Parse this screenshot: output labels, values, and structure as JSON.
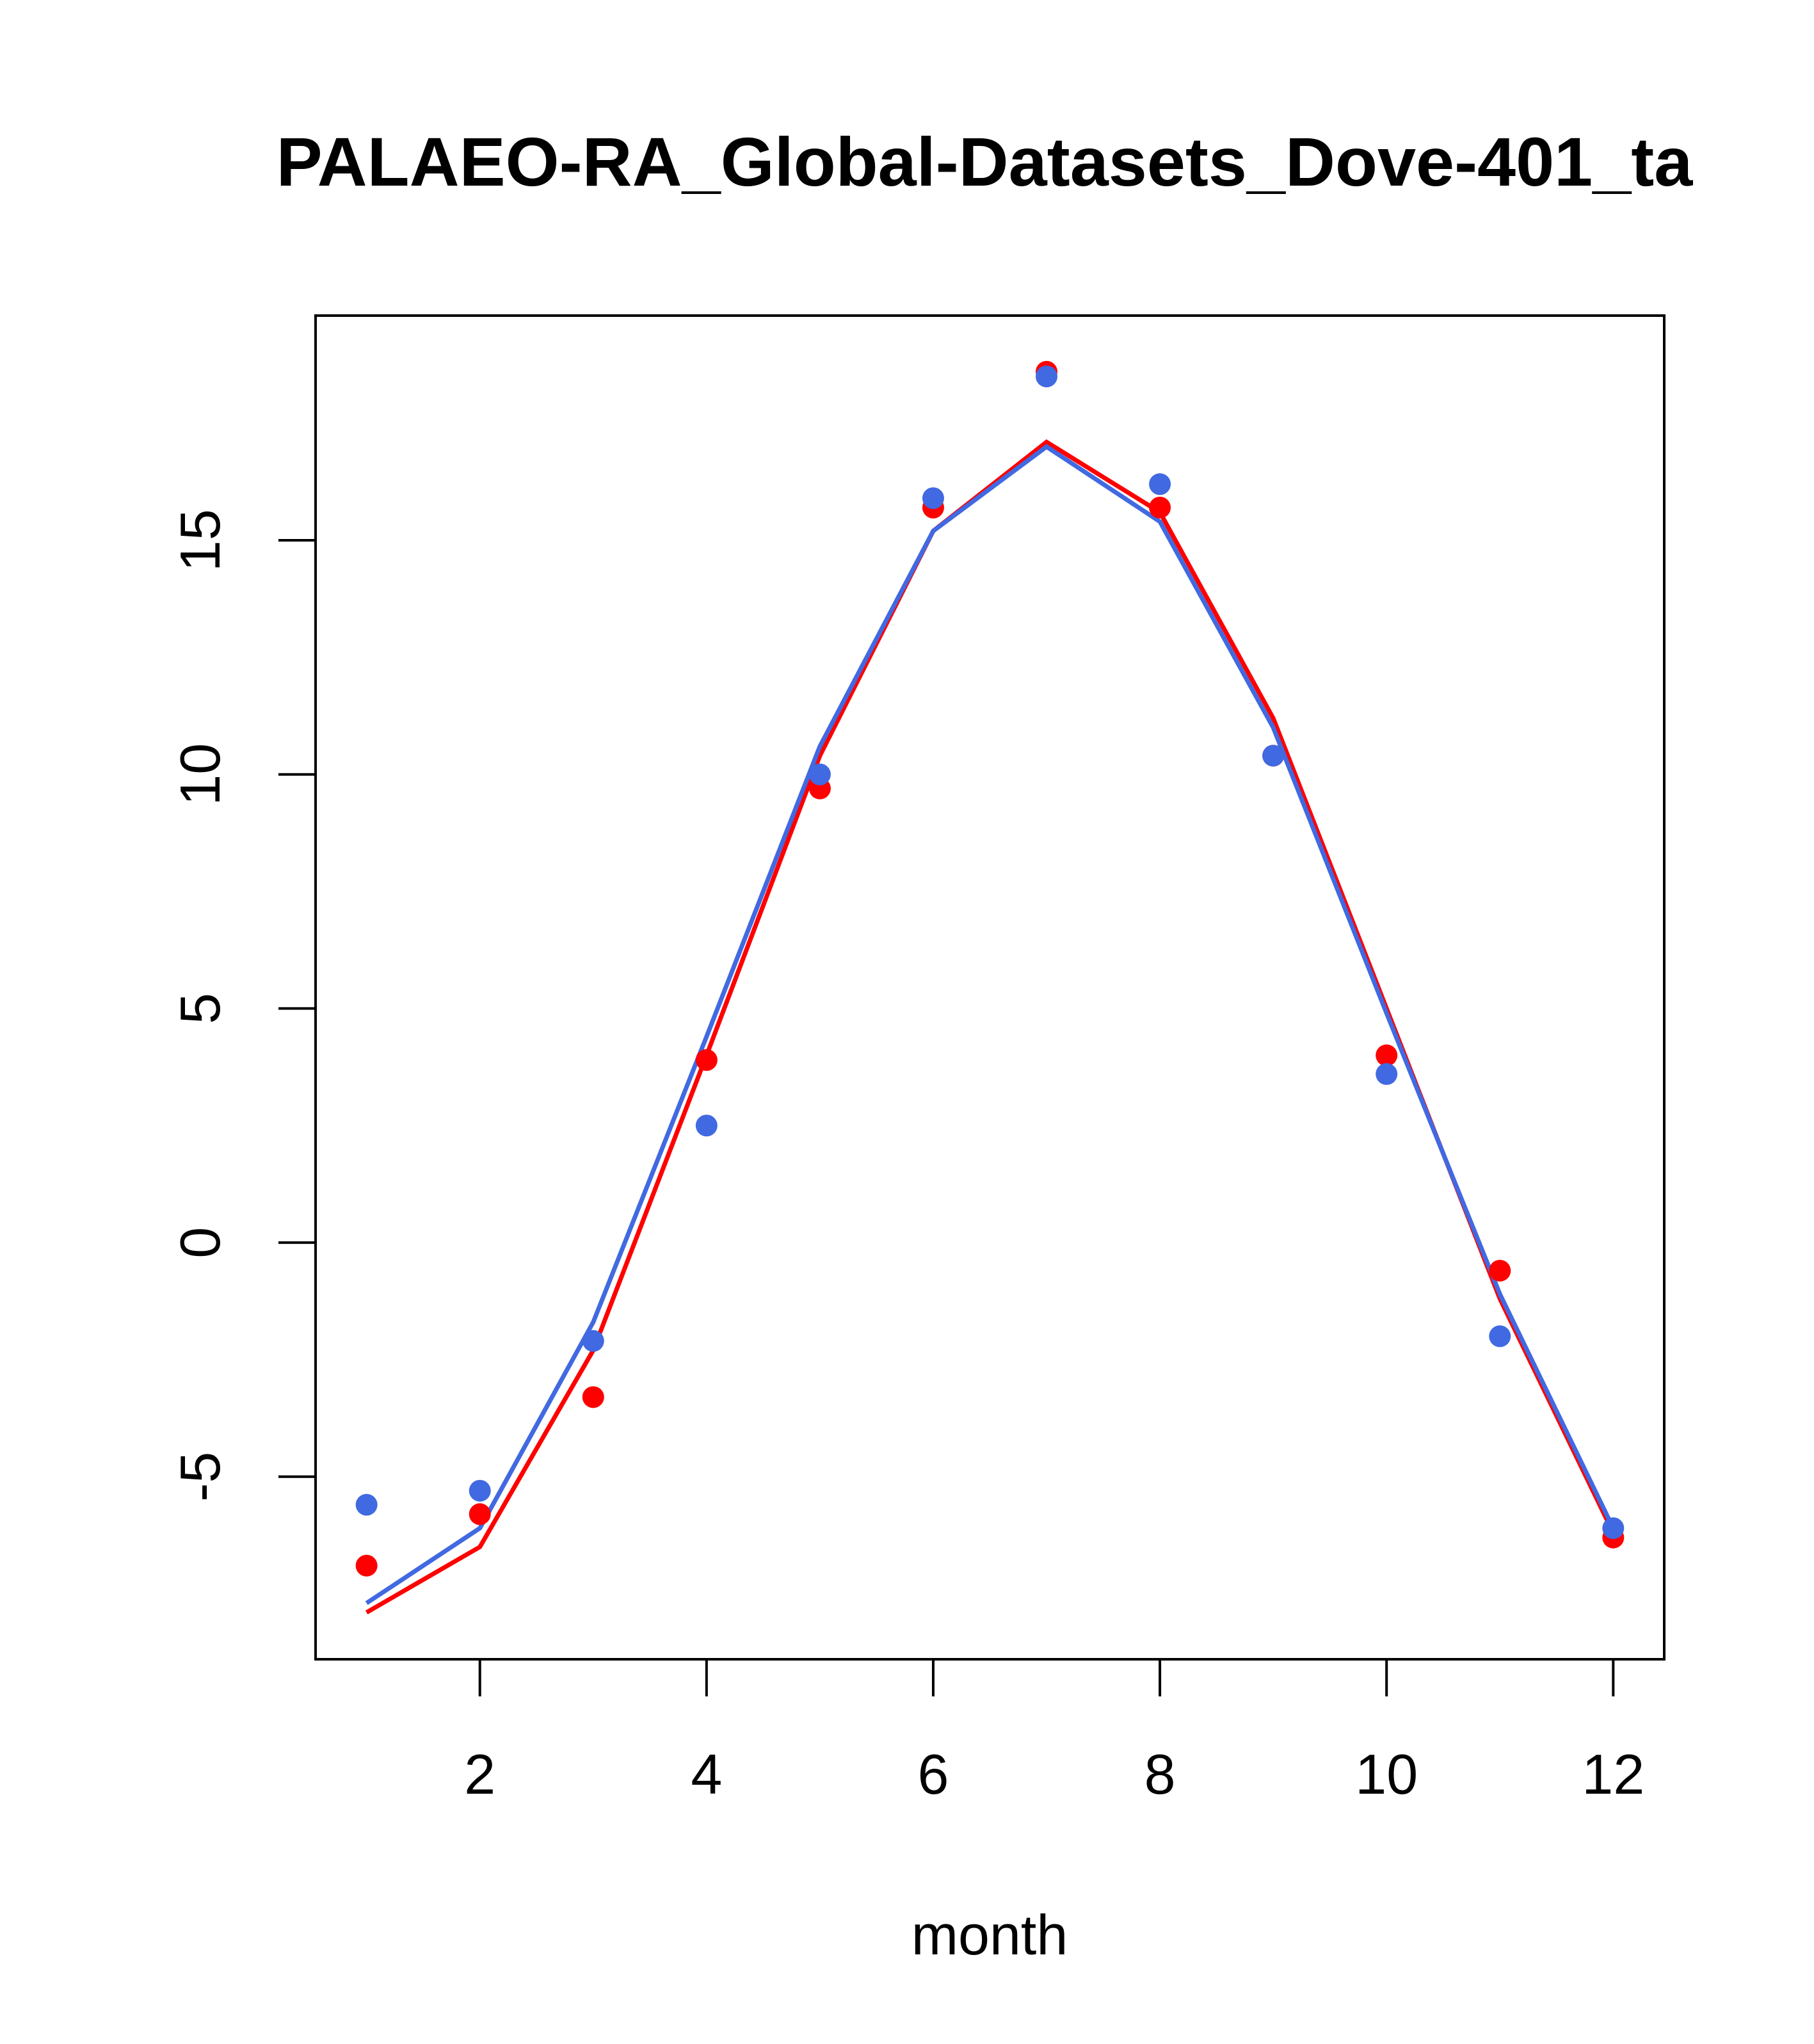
{
  "chart_data": {
    "type": "line",
    "title": "PALAEO-RA_Global-Datasets_Dove-401_ta",
    "xlabel": "month",
    "ylabel": "",
    "xlim": [
      0.55,
      12.45
    ],
    "ylim": [
      -8.9,
      19.8
    ],
    "x_ticks": [
      2,
      4,
      6,
      8,
      10,
      12
    ],
    "x_tick_labels": [
      "2",
      "4",
      "6",
      "8",
      "10",
      "12"
    ],
    "y_ticks": [
      -5,
      0,
      5,
      10,
      15
    ],
    "y_tick_labels": [
      "-5",
      "0",
      "5",
      "10",
      "15"
    ],
    "grid": false,
    "x": [
      1,
      2,
      3,
      4,
      5,
      6,
      7,
      8,
      9,
      10,
      11,
      12
    ],
    "series": [
      {
        "color": "#ff0000",
        "points": [
          -6.9,
          -5.8,
          -3.3,
          3.9,
          9.7,
          15.7,
          18.6,
          15.7,
          10.4,
          4.0,
          -0.6,
          -6.3
        ],
        "line": [
          -7.9,
          -6.5,
          -2.3,
          4.0,
          10.4,
          15.2,
          17.1,
          15.6,
          11.2,
          5.0,
          -1.2,
          -6.2
        ]
      },
      {
        "color": "#4169e1",
        "points": [
          -5.6,
          -5.3,
          -2.1,
          2.5,
          10.0,
          15.9,
          18.5,
          16.2,
          10.4,
          3.6,
          -2.0,
          -6.1
        ],
        "line": [
          -7.7,
          -6.1,
          -1.7,
          4.4,
          10.6,
          15.2,
          17.0,
          15.4,
          11.0,
          4.9,
          -1.1,
          -6.1
        ]
      }
    ]
  }
}
